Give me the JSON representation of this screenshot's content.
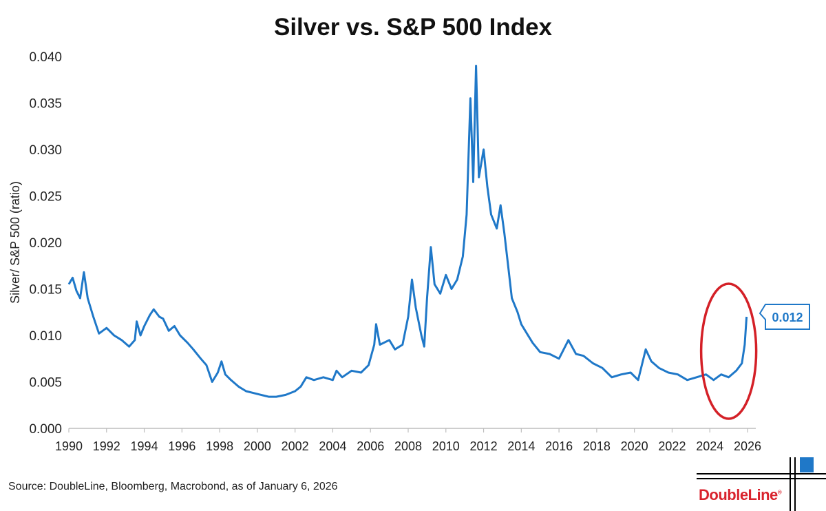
{
  "chart_data": {
    "type": "line",
    "title": "Silver vs. S&P 500 Index",
    "ylabel": "Silver/ S&P 500 (ratio)",
    "xlabel": "",
    "xlim": [
      1990,
      2026.3
    ],
    "ylim": [
      0,
      0.04
    ],
    "xticks": [
      "1990",
      "1992",
      "1994",
      "1996",
      "1998",
      "2000",
      "2002",
      "2004",
      "2006",
      "2008",
      "2010",
      "2012",
      "2014",
      "2016",
      "2018",
      "2020",
      "2022",
      "2024",
      "2026"
    ],
    "yticks": [
      "0.000",
      "0.005",
      "0.010",
      "0.015",
      "0.020",
      "0.025",
      "0.030",
      "0.035",
      "0.040"
    ],
    "series": [
      {
        "name": "Silver/ S&P 500",
        "color": "#1f78c8",
        "points": [
          [
            1990.0,
            0.0155
          ],
          [
            1990.2,
            0.0162
          ],
          [
            1990.4,
            0.0148
          ],
          [
            1990.6,
            0.014
          ],
          [
            1990.8,
            0.0168
          ],
          [
            1991.0,
            0.014
          ],
          [
            1991.3,
            0.012
          ],
          [
            1991.6,
            0.0102
          ],
          [
            1992.0,
            0.0108
          ],
          [
            1992.4,
            0.01
          ],
          [
            1992.8,
            0.0095
          ],
          [
            1993.2,
            0.0088
          ],
          [
            1993.5,
            0.0095
          ],
          [
            1993.6,
            0.0115
          ],
          [
            1993.8,
            0.01
          ],
          [
            1994.0,
            0.011
          ],
          [
            1994.3,
            0.0122
          ],
          [
            1994.5,
            0.0128
          ],
          [
            1994.8,
            0.012
          ],
          [
            1995.0,
            0.0118
          ],
          [
            1995.3,
            0.0105
          ],
          [
            1995.6,
            0.011
          ],
          [
            1995.9,
            0.01
          ],
          [
            1996.3,
            0.0092
          ],
          [
            1996.6,
            0.0085
          ],
          [
            1997.0,
            0.0075
          ],
          [
            1997.3,
            0.0068
          ],
          [
            1997.6,
            0.005
          ],
          [
            1997.9,
            0.006
          ],
          [
            1998.1,
            0.0072
          ],
          [
            1998.3,
            0.0058
          ],
          [
            1998.6,
            0.0052
          ],
          [
            1999.0,
            0.0045
          ],
          [
            1999.4,
            0.004
          ],
          [
            1999.8,
            0.0038
          ],
          [
            2000.2,
            0.0036
          ],
          [
            2000.6,
            0.0034
          ],
          [
            2001.0,
            0.0034
          ],
          [
            2001.5,
            0.0036
          ],
          [
            2002.0,
            0.004
          ],
          [
            2002.3,
            0.0045
          ],
          [
            2002.6,
            0.0055
          ],
          [
            2003.0,
            0.0052
          ],
          [
            2003.5,
            0.0055
          ],
          [
            2004.0,
            0.0052
          ],
          [
            2004.2,
            0.0062
          ],
          [
            2004.5,
            0.0055
          ],
          [
            2005.0,
            0.0062
          ],
          [
            2005.5,
            0.006
          ],
          [
            2005.9,
            0.0068
          ],
          [
            2006.2,
            0.009
          ],
          [
            2006.3,
            0.0112
          ],
          [
            2006.5,
            0.009
          ],
          [
            2007.0,
            0.0095
          ],
          [
            2007.3,
            0.0085
          ],
          [
            2007.7,
            0.009
          ],
          [
            2008.0,
            0.012
          ],
          [
            2008.2,
            0.016
          ],
          [
            2008.4,
            0.013
          ],
          [
            2008.7,
            0.01
          ],
          [
            2008.85,
            0.0088
          ],
          [
            2009.0,
            0.014
          ],
          [
            2009.2,
            0.0195
          ],
          [
            2009.4,
            0.0155
          ],
          [
            2009.7,
            0.0145
          ],
          [
            2010.0,
            0.0165
          ],
          [
            2010.3,
            0.015
          ],
          [
            2010.6,
            0.016
          ],
          [
            2010.9,
            0.0185
          ],
          [
            2011.1,
            0.023
          ],
          [
            2011.3,
            0.0355
          ],
          [
            2011.45,
            0.0265
          ],
          [
            2011.6,
            0.039
          ],
          [
            2011.75,
            0.027
          ],
          [
            2012.0,
            0.03
          ],
          [
            2012.2,
            0.026
          ],
          [
            2012.4,
            0.023
          ],
          [
            2012.7,
            0.0215
          ],
          [
            2012.9,
            0.024
          ],
          [
            2013.1,
            0.021
          ],
          [
            2013.3,
            0.0175
          ],
          [
            2013.5,
            0.014
          ],
          [
            2013.8,
            0.0125
          ],
          [
            2014.0,
            0.0112
          ],
          [
            2014.3,
            0.0102
          ],
          [
            2014.6,
            0.0092
          ],
          [
            2015.0,
            0.0082
          ],
          [
            2015.5,
            0.008
          ],
          [
            2016.0,
            0.0075
          ],
          [
            2016.5,
            0.0095
          ],
          [
            2016.9,
            0.008
          ],
          [
            2017.3,
            0.0078
          ],
          [
            2017.8,
            0.007
          ],
          [
            2018.3,
            0.0065
          ],
          [
            2018.8,
            0.0055
          ],
          [
            2019.3,
            0.0058
          ],
          [
            2019.8,
            0.006
          ],
          [
            2020.2,
            0.0052
          ],
          [
            2020.6,
            0.0085
          ],
          [
            2020.9,
            0.0072
          ],
          [
            2021.3,
            0.0065
          ],
          [
            2021.8,
            0.006
          ],
          [
            2022.3,
            0.0058
          ],
          [
            2022.8,
            0.0052
          ],
          [
            2023.3,
            0.0055
          ],
          [
            2023.8,
            0.0058
          ],
          [
            2024.2,
            0.0052
          ],
          [
            2024.6,
            0.0058
          ],
          [
            2025.0,
            0.0055
          ],
          [
            2025.4,
            0.0062
          ],
          [
            2025.7,
            0.007
          ],
          [
            2025.85,
            0.009
          ],
          [
            2025.95,
            0.012
          ]
        ]
      }
    ],
    "annotations": [
      {
        "type": "callout",
        "text": "0.012",
        "x": 2026.0,
        "y": 0.012
      },
      {
        "type": "ellipse",
        "color": "#d42027",
        "x_center": 2025.0,
        "y_center": 0.0083
      }
    ]
  },
  "source": "Source: DoubleLine, Bloomberg, Macrobond, as of January 6, 2026",
  "logo": {
    "name": "DoubleLine",
    "mark": "®",
    "color": "#d9232d"
  }
}
